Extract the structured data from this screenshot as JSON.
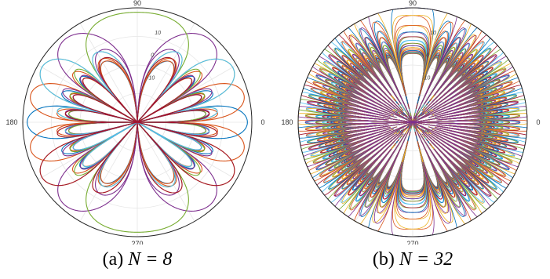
{
  "colors": {
    "palette": [
      "#0072BD",
      "#D95319",
      "#EDB120",
      "#7E2F8E",
      "#77AC30",
      "#4DBEEE",
      "#A2142F"
    ],
    "grid": "#e6e6e6",
    "outer": "#262626"
  },
  "chart_data": [
    {
      "type": "polar-line",
      "caption_prefix": "(a)",
      "caption_math": "N = 8",
      "angle_ticks": [
        "0",
        "90",
        "180",
        "270"
      ],
      "radial_ticks": [
        "10",
        "0",
        "-10"
      ],
      "radial_range_db": [
        -30,
        20
      ],
      "grid": true,
      "num_beams": 8,
      "beam_steering_deg": [
        0,
        14.5,
        30,
        48.6,
        -14.5,
        -30,
        -48.6,
        90
      ],
      "patterns": [
        {
          "color_index": 0,
          "beams": [
            0
          ]
        },
        {
          "color_index": 1,
          "beams": [
            1,
            4
          ]
        },
        {
          "color_index": 2,
          "beams": [
            2,
            5
          ]
        },
        {
          "color_index": 3,
          "beams": [
            3,
            6
          ]
        },
        {
          "color_index": 4,
          "beams": [
            7
          ]
        },
        {
          "color_index": 5,
          "beams": [
            2
          ]
        },
        {
          "color_index": 6,
          "beams": [
            5
          ]
        }
      ]
    },
    {
      "type": "polar-line",
      "caption_prefix": "(b)",
      "caption_math": "N = 32",
      "angle_ticks": [
        "0",
        "90",
        "180",
        "270"
      ],
      "radial_ticks": [
        "10",
        "0",
        "-10"
      ],
      "radial_range_db": [
        -30,
        20
      ],
      "grid": true,
      "num_beams": 32
    }
  ]
}
